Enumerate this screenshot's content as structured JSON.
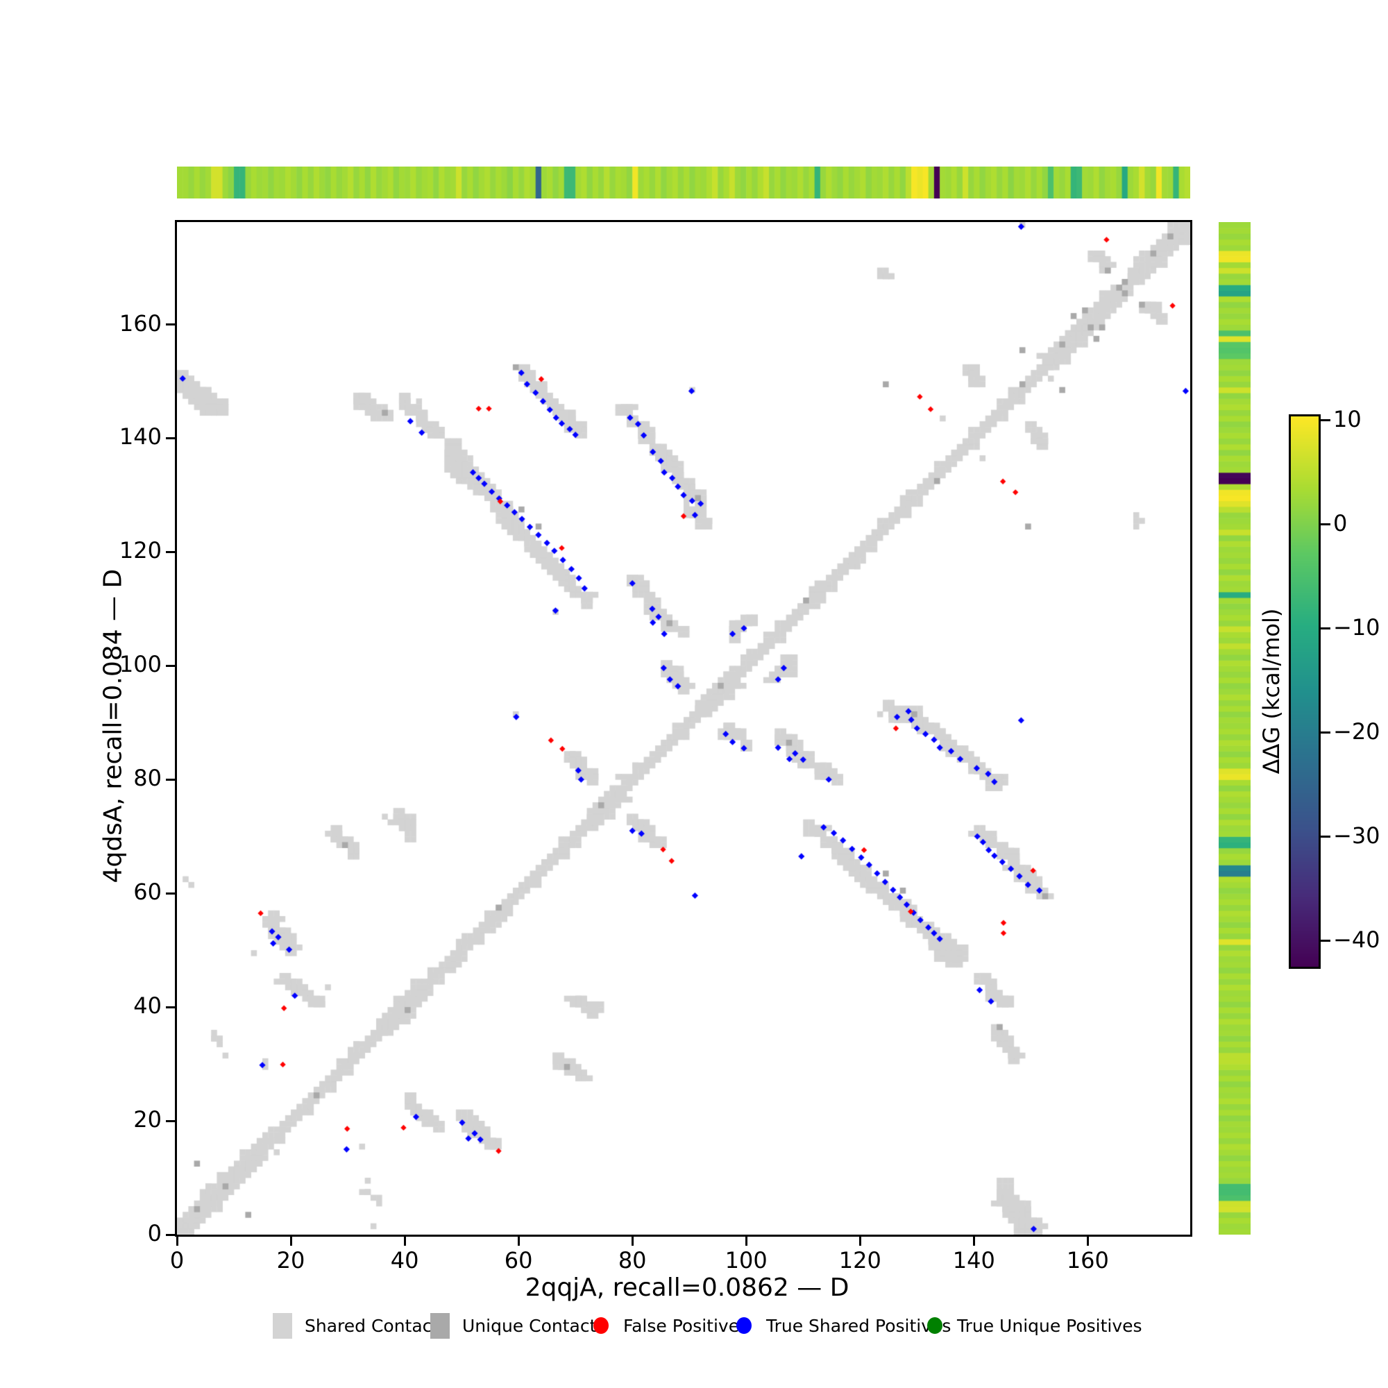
{
  "chart_data": {
    "type": "heatmap",
    "subtype": "protein-contact-map-comparison",
    "xlabel": "2qqjA, recall=0.0862 — D",
    "ylabel": "4qdsA, recall=0.084 — D",
    "xlim": [
      0,
      178
    ],
    "ylim": [
      0,
      178
    ],
    "xticks": [
      0,
      20,
      40,
      60,
      80,
      100,
      120,
      140,
      160
    ],
    "yticks": [
      0,
      20,
      40,
      60,
      80,
      100,
      120,
      140,
      160
    ],
    "grid": false,
    "colors": {
      "shared_contacts": "#d3d3d3",
      "unique_contacts": "#a9a9a9",
      "false_positives": "#ff0000",
      "true_shared_positives": "#0000ff",
      "true_unique_positives": "#008000",
      "background": "#ffffff"
    },
    "legend": {
      "position": "bottom-center",
      "items": [
        {
          "label": "Shared Contacts",
          "marker": "square",
          "color": "#d3d3d3",
          "x": 392
        },
        {
          "label": "Unique Contacts",
          "marker": "square",
          "color": "#a9a9a9",
          "x": 619
        },
        {
          "label": "False Positives",
          "marker": "circle",
          "color": "#ff0000",
          "x": 851
        },
        {
          "label": "True Shared Positives",
          "marker": "circle",
          "color": "#0000ff",
          "x": 1057
        },
        {
          "label": "True Unique Positives",
          "marker": "circle",
          "color": "#008000",
          "x": 1332
        }
      ]
    },
    "colorbar": {
      "label": "ΔΔG (kcal/mol)",
      "ticks": [
        10,
        0,
        -10,
        -20,
        -30,
        -40
      ],
      "vmax": 10.35,
      "vmin": -42.5,
      "colormap": "viridis"
    },
    "colormap_stops": [
      [
        0.0,
        [
          68,
          1,
          84
        ]
      ],
      [
        0.13,
        [
          71,
          44,
          122
        ]
      ],
      [
        0.25,
        [
          59,
          81,
          139
        ]
      ],
      [
        0.38,
        [
          44,
          113,
          142
        ]
      ],
      [
        0.5,
        [
          33,
          144,
          141
        ]
      ],
      [
        0.62,
        [
          39,
          173,
          129
        ]
      ],
      [
        0.75,
        [
          92,
          200,
          99
        ]
      ],
      [
        0.87,
        [
          170,
          220,
          50
        ]
      ],
      [
        1.0,
        [
          253,
          231,
          37
        ]
      ]
    ],
    "diagonal": {
      "from": 0,
      "to": 178,
      "base_width": 3,
      "widenings": [
        [
          0,
          15,
          4
        ],
        [
          36,
          44,
          4
        ],
        [
          73,
          78,
          4
        ],
        [
          92,
          98,
          4
        ],
        [
          118,
          122,
          3
        ],
        [
          145,
          151,
          3
        ],
        [
          153,
          166,
          4
        ],
        [
          168,
          178,
          4
        ]
      ]
    },
    "clusters_mirrored": [
      {
        "x0": 0.5,
        "y0": 150,
        "x1": 7,
        "y1": 145,
        "t": 3
      },
      {
        "x0": 31,
        "y0": 147,
        "x1": 36,
        "y1": 144,
        "t": 2
      },
      {
        "x0": 40,
        "y0": 146,
        "x1": 45,
        "y1": 140.5,
        "t": 2
      },
      {
        "x0": 59.5,
        "y0": 152,
        "x1": 70.5,
        "y1": 141,
        "t": 2
      },
      {
        "x0": 48,
        "y0": 137,
        "x1": 51,
        "y1": 133,
        "t": 3
      },
      {
        "x0": 51,
        "y0": 134,
        "x1": 71.5,
        "y1": 111,
        "t": 2
      },
      {
        "x0": 78.5,
        "y0": 145,
        "x1": 92,
        "y1": 128,
        "t": 2
      },
      {
        "x0": 90,
        "y0": 127,
        "x1": 92.5,
        "y1": 124.5,
        "t": 2
      },
      {
        "x0": 79.5,
        "y0": 115,
        "x1": 81.5,
        "y1": 112.5,
        "t": 2
      },
      {
        "x0": 83,
        "y0": 110.5,
        "x1": 87.5,
        "y1": 105.5,
        "t": 2
      },
      {
        "x0": 97.5,
        "y0": 105,
        "x1": 100,
        "y1": 107.5,
        "t": 2
      },
      {
        "x0": 69,
        "y0": 84,
        "x1": 72.5,
        "y1": 80,
        "t": 2
      },
      {
        "x0": 15.5,
        "y0": 56,
        "x1": 20,
        "y1": 50,
        "t": 2
      },
      {
        "x0": 19,
        "y0": 44.5,
        "x1": 23.5,
        "y1": 40.5,
        "t": 2
      },
      {
        "x0": 27.5,
        "y0": 70.5,
        "x1": 31,
        "y1": 66.5,
        "t": 2
      },
      {
        "x0": 38.5,
        "y0": 73.5,
        "x1": 41,
        "y1": 70,
        "t": 2
      },
      {
        "x0": 5.5,
        "y0": 35,
        "x1": 7.5,
        "y1": 33,
        "t": 1
      },
      {
        "x0": 85.5,
        "y0": 99.5,
        "x1": 89,
        "y1": 96,
        "t": 2
      },
      {
        "x0": 139,
        "y0": 151.5,
        "x1": 140.5,
        "y1": 149.5,
        "t": 2
      },
      {
        "x0": 161,
        "y0": 172,
        "x1": 163,
        "y1": 170,
        "t": 2
      },
      {
        "x0": 124,
        "y0": 168,
        "x1": 125.5,
        "y1": 168,
        "t": 1
      }
    ],
    "single_cells": [
      [
        1,
        62
      ],
      [
        2,
        61
      ],
      [
        8,
        31
      ],
      [
        13.5,
        49
      ],
      [
        26,
        43
      ],
      [
        33,
        9
      ],
      [
        34.5,
        1.5
      ],
      [
        59.5,
        91
      ],
      [
        66.5,
        109.5
      ],
      [
        134,
        143
      ],
      [
        141,
        136
      ],
      [
        90,
        148.5
      ],
      [
        148,
        177
      ],
      [
        15,
        30
      ],
      [
        15,
        29
      ],
      [
        32.5,
        15
      ]
    ],
    "dark_cells_mirrored": [
      [
        59,
        152
      ],
      [
        60.5,
        127
      ],
      [
        63.5,
        124
      ],
      [
        91,
        129.5
      ],
      [
        86,
        107.5
      ],
      [
        36,
        144
      ],
      [
        29.5,
        68
      ],
      [
        124.5,
        149.5
      ],
      [
        157,
        161.5
      ],
      [
        159,
        162
      ],
      [
        148,
        155
      ],
      [
        165,
        166.5
      ],
      [
        169,
        163
      ],
      [
        12,
        3
      ]
    ],
    "dark_cells_diagonal": [
      [
        3.5,
        4.5
      ],
      [
        8,
        8
      ],
      [
        24,
        24
      ],
      [
        40,
        39
      ],
      [
        56.5,
        57.5
      ],
      [
        74.5,
        75.5
      ],
      [
        95.5,
        96.5
      ],
      [
        110.5,
        111
      ],
      [
        133,
        132.5
      ],
      [
        148.5,
        149.5
      ],
      [
        155.5,
        156.5
      ],
      [
        160,
        159.5
      ],
      [
        166.5,
        167
      ],
      [
        171.5,
        172.5
      ],
      [
        174.5,
        175.5
      ]
    ],
    "true_shared_positives_mirrored": [
      [
        1,
        150.5
      ],
      [
        41,
        143
      ],
      [
        43,
        141
      ],
      [
        60.5,
        151.5
      ],
      [
        61.5,
        149.5
      ],
      [
        63,
        148
      ],
      [
        64.3,
        146.5
      ],
      [
        65.5,
        145
      ],
      [
        66.6,
        143.6
      ],
      [
        67.6,
        142.6
      ],
      [
        69,
        141.6
      ],
      [
        70,
        140.6
      ],
      [
        52,
        134
      ],
      [
        53,
        133
      ],
      [
        54,
        132
      ],
      [
        55.3,
        130.6
      ],
      [
        56.6,
        129.4
      ],
      [
        58,
        128.2
      ],
      [
        59.3,
        127
      ],
      [
        60.6,
        125.8
      ],
      [
        62,
        124.4
      ],
      [
        63.5,
        123
      ],
      [
        65,
        121.6
      ],
      [
        66.3,
        120.2
      ],
      [
        67.8,
        118.6
      ],
      [
        69.3,
        117
      ],
      [
        70.6,
        115.4
      ],
      [
        71.6,
        113.6
      ],
      [
        79.6,
        143.6
      ],
      [
        81,
        142.5
      ],
      [
        82,
        140.5
      ],
      [
        83.6,
        137.6
      ],
      [
        85,
        136
      ],
      [
        85.6,
        134
      ],
      [
        87,
        133
      ],
      [
        88,
        131.5
      ],
      [
        89,
        130
      ],
      [
        90.5,
        129
      ],
      [
        92,
        128.5
      ],
      [
        91,
        126.5
      ],
      [
        80,
        114.5
      ],
      [
        83.5,
        110
      ],
      [
        84.6,
        108.6
      ],
      [
        83.6,
        107.6
      ],
      [
        85.6,
        105.6
      ],
      [
        97.6,
        105.6
      ],
      [
        99.6,
        106.6
      ],
      [
        59.6,
        91
      ],
      [
        70.5,
        81.6
      ],
      [
        71,
        80
      ],
      [
        16.7,
        53.3
      ],
      [
        17.8,
        52.3
      ],
      [
        16.9,
        51.2
      ],
      [
        19.7,
        50.1
      ],
      [
        20.7,
        42
      ],
      [
        15,
        29.8
      ],
      [
        66.5,
        109.7
      ],
      [
        85.5,
        99.6
      ],
      [
        86.6,
        97.6
      ],
      [
        88,
        96.4
      ],
      [
        90.4,
        148.3
      ],
      [
        148.3,
        177.2
      ]
    ],
    "false_positives_mirrored": [
      [
        53,
        145.2
      ],
      [
        54.8,
        145.2
      ],
      [
        64,
        150.4
      ],
      [
        56.8,
        128.9
      ],
      [
        67.6,
        120.7
      ],
      [
        89,
        126.3
      ],
      [
        65.7,
        86.9
      ],
      [
        67.7,
        85.4
      ],
      [
        14.7,
        56.5
      ],
      [
        18.8,
        39.8
      ],
      [
        18.6,
        29.9
      ],
      [
        130.5,
        147.3
      ],
      [
        132.4,
        145.1
      ],
      [
        163.3,
        174.9
      ]
    ],
    "true_unique_positives": [],
    "top_strip": {
      "protein": "2qqjA",
      "values": [
        3,
        3,
        2,
        3.5,
        2,
        3,
        7,
        7,
        2.5,
        1,
        -8,
        -8,
        2,
        3.5,
        2.5,
        3,
        1.5,
        3,
        2.5,
        4,
        3,
        1.5,
        3.5,
        2,
        4,
        2.5,
        1.5,
        3.5,
        2,
        3,
        4.5,
        2,
        3.5,
        1.5,
        4,
        2,
        3,
        4,
        1.5,
        3,
        2.5,
        4,
        2,
        3,
        3.5,
        1.5,
        4,
        2.5,
        3,
        6.5,
        2,
        3.5,
        1.5,
        3,
        4,
        2,
        3.5,
        2.5,
        1,
        3.5,
        2,
        4,
        3,
        -25,
        2.5,
        3.5,
        1.5,
        3,
        -7,
        -7,
        3,
        4,
        1.5,
        3.5,
        2,
        4.5,
        2,
        3.5,
        3,
        1.5,
        9.5,
        2.5,
        3.5,
        2,
        4,
        1.5,
        3,
        4,
        2,
        3.5,
        1.5,
        3,
        2.5,
        4,
        6,
        2,
        3.5,
        6,
        2.5,
        1.5,
        3.5,
        2,
        4,
        6,
        2,
        3.5,
        1.5,
        3,
        2.5,
        4,
        2,
        3.5,
        -8,
        2,
        4,
        2.5,
        1.5,
        3.5,
        2,
        3,
        4,
        1.5,
        3,
        2.5,
        4,
        2,
        3.5,
        1.5,
        5,
        10,
        9,
        10,
        3,
        -43,
        3,
        2.5,
        4,
        2,
        6.5,
        2,
        3.5,
        1.5,
        3,
        4,
        2,
        3.5,
        1,
        3,
        2.5,
        4,
        2,
        3.5,
        1.5,
        -5,
        3,
        2,
        3.5,
        -8,
        -7,
        3,
        2.5,
        4,
        1.5,
        3,
        3.5,
        2,
        -11,
        2.5,
        3.5,
        7,
        3,
        2,
        9.5,
        3,
        2.5,
        -8,
        3.5,
        4.5
      ]
    },
    "right_strip": {
      "protein": "4qdsA",
      "values": [
        3,
        2.5,
        3.5,
        2,
        7,
        6.5,
        -5,
        -6,
        -6,
        2,
        3,
        2.5,
        3.5,
        1.5,
        3,
        4,
        2,
        3.5,
        2.5,
        3,
        1.5,
        3.5,
        2,
        4,
        2.5,
        3,
        1.5,
        3.5,
        2,
        4,
        5,
        5,
        2,
        3.5,
        1.5,
        3,
        2.5,
        4,
        2,
        3.5,
        1.5,
        3,
        2.5,
        4,
        2,
        3.5,
        1.5,
        3,
        2.5,
        4,
        2,
        8,
        2,
        3.5,
        1.5,
        3,
        4,
        2,
        3.5,
        2.5,
        1.5,
        3,
        4,
        -20,
        -18,
        2.5,
        3.5,
        2,
        -9,
        -8,
        3,
        2.5,
        4,
        1.5,
        3.5,
        2,
        3,
        4,
        1.5,
        3.5,
        9,
        8,
        2.5,
        3.5,
        1.5,
        3,
        4,
        2,
        3.5,
        2.5,
        3,
        1.5,
        3.5,
        2,
        4,
        2.5,
        1.5,
        3.5,
        2,
        3,
        4,
        1.5,
        3,
        5.5,
        2.5,
        3.5,
        6,
        2,
        3.5,
        2.5,
        1.5,
        3,
        -10,
        3,
        2.5,
        4,
        1.5,
        3.5,
        2,
        3,
        2.5,
        4,
        1.5,
        6,
        3,
        2.5,
        2,
        5,
        8,
        10,
        9.5,
        4,
        -43,
        -42,
        3,
        2.5,
        3.5,
        1.5,
        4,
        2,
        3.5,
        2.5,
        1.5,
        3.5,
        2,
        4,
        3,
        1.5,
        6.5,
        2,
        3.5,
        1.5,
        3,
        2.5,
        -3,
        -4,
        -3.5,
        8,
        -5,
        2.5,
        3.5,
        2,
        3,
        1.5,
        4,
        -12,
        -10,
        3,
        2,
        6.5,
        3,
        9.5,
        9,
        2.5,
        3.5,
        2,
        3,
        2.5
      ]
    }
  },
  "geometry_note": "contact map of 2qqjA vs 4qdsA with per-residue ΔΔG strips"
}
